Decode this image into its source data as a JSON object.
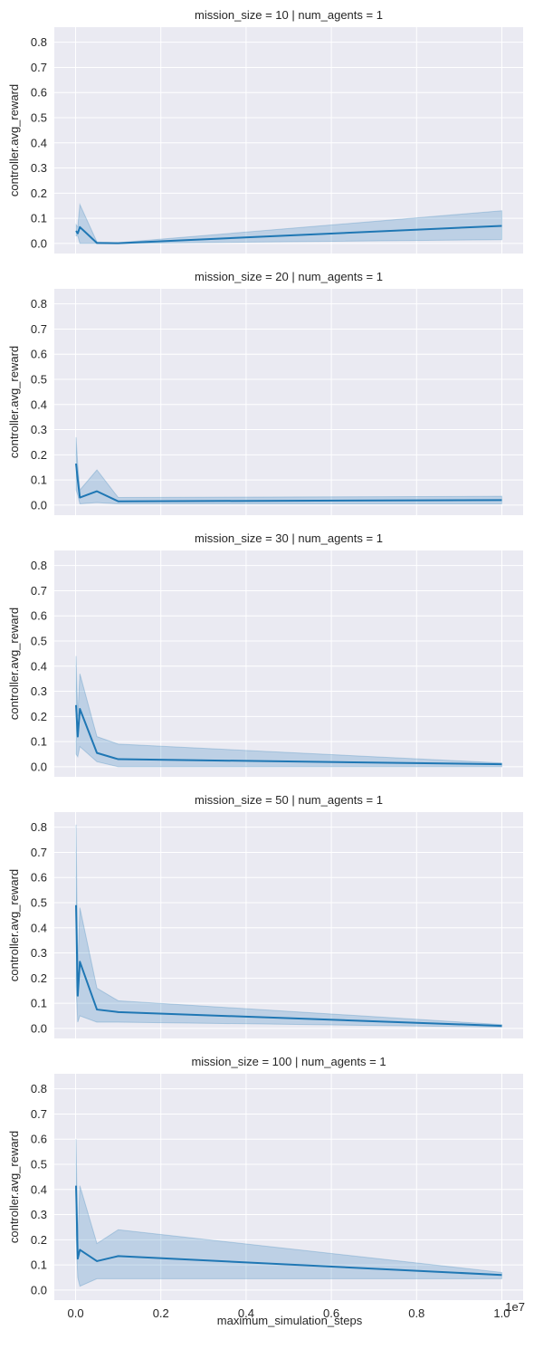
{
  "chart_data": {
    "type": "line",
    "xlabel": "maximum_simulation_steps",
    "ylabel": "controller.avg_reward",
    "x_offset_label": "1e7",
    "xlim": [
      -500000,
      10500000
    ],
    "ylim": [
      -0.04,
      0.86
    ],
    "x_ticks": [
      0,
      2000000,
      4000000,
      6000000,
      8000000,
      10000000
    ],
    "x_tick_labels": [
      "0.0",
      "0.2",
      "0.4",
      "0.6",
      "0.8",
      "1.0"
    ],
    "y_ticks": [
      0,
      0.1,
      0.2,
      0.3,
      0.4,
      0.5,
      0.6,
      0.7,
      0.8
    ],
    "y_tick_labels": [
      "0.0",
      "0.1",
      "0.2",
      "0.3",
      "0.4",
      "0.5",
      "0.6",
      "0.7",
      "0.8"
    ],
    "grid": true,
    "colors": {
      "line": "#1f77b4",
      "band": "#1f77b4",
      "panel_bg": "#eaeaf2",
      "grid": "#ffffff"
    },
    "panels": [
      {
        "title": "mission_size = 10 | num_agents = 1",
        "x": [
          10000,
          50000,
          100000,
          500000,
          1000000,
          10000000
        ],
        "y": [
          0.05,
          0.04,
          0.065,
          0.002,
          0.001,
          0.07
        ],
        "lower": [
          0.03,
          0.03,
          0.0,
          0.0,
          0.0,
          0.015
        ],
        "upper": [
          0.075,
          0.065,
          0.155,
          0.006,
          0.003,
          0.13
        ]
      },
      {
        "title": "mission_size = 20 | num_agents = 1",
        "x": [
          10000,
          50000,
          100000,
          500000,
          1000000,
          10000000
        ],
        "y": [
          0.165,
          0.1,
          0.03,
          0.055,
          0.015,
          0.02
        ],
        "lower": [
          0.06,
          0.04,
          0.005,
          0.01,
          0.005,
          0.005
        ],
        "upper": [
          0.27,
          0.16,
          0.06,
          0.14,
          0.03,
          0.035
        ]
      },
      {
        "title": "mission_size = 30 | num_agents = 1",
        "x": [
          10000,
          50000,
          100000,
          500000,
          1000000,
          10000000
        ],
        "y": [
          0.245,
          0.12,
          0.23,
          0.055,
          0.03,
          0.01
        ],
        "lower": [
          0.05,
          0.04,
          0.08,
          0.02,
          0.0,
          0.0
        ],
        "upper": [
          0.44,
          0.2,
          0.37,
          0.12,
          0.09,
          0.015
        ]
      },
      {
        "title": "mission_size = 50 | num_agents = 1",
        "x": [
          10000,
          50000,
          100000,
          500000,
          1000000,
          10000000
        ],
        "y": [
          0.49,
          0.13,
          0.265,
          0.075,
          0.065,
          0.01
        ],
        "lower": [
          0.17,
          0.025,
          0.05,
          0.025,
          0.025,
          0.005
        ],
        "upper": [
          0.81,
          0.24,
          0.48,
          0.16,
          0.11,
          0.015
        ]
      },
      {
        "title": "mission_size = 100 | num_agents = 1",
        "x": [
          10000,
          50000,
          100000,
          500000,
          1000000,
          10000000
        ],
        "y": [
          0.415,
          0.125,
          0.16,
          0.115,
          0.135,
          0.06
        ],
        "lower": [
          0.22,
          0.05,
          0.015,
          0.045,
          0.045,
          0.045
        ],
        "upper": [
          0.6,
          0.2,
          0.415,
          0.185,
          0.24,
          0.07
        ]
      }
    ]
  }
}
